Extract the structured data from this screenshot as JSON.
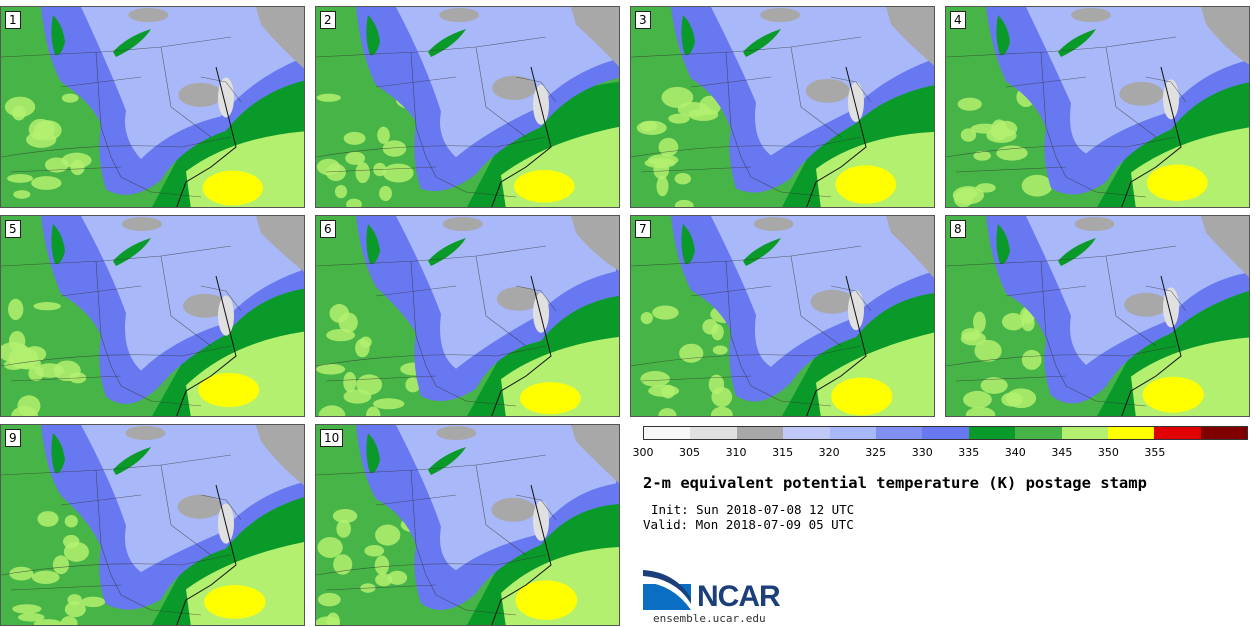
{
  "figure": {
    "title": "2-m equivalent potential temperature (K) postage stamp",
    "init": "Init: Sun 2018-07-08 12 UTC",
    "valid": "Valid: Mon 2018-07-09 05 UTC",
    "logo_text": "NCAR",
    "url": "ensemble.ucar.edu"
  },
  "members": [
    "1",
    "2",
    "3",
    "4",
    "5",
    "6",
    "7",
    "8",
    "9",
    "10"
  ],
  "colorbar": {
    "ticks": [
      "300",
      "305",
      "310",
      "315",
      "320",
      "325",
      "330",
      "335",
      "340",
      "345",
      "350",
      "355"
    ],
    "colors": [
      "#f7f7f7",
      "#e0e0e0",
      "#a8a8a8",
      "#c0c8f8",
      "#a8b8f8",
      "#8090f0",
      "#6878f0",
      "#0a9a2a",
      "#46b446",
      "#b4f070",
      "#ffff00",
      "#e00000",
      "#800000"
    ]
  },
  "map_colors": {
    "green_dark": "#0a9a2a",
    "green": "#46b446",
    "green_light": "#b4f070",
    "yellow": "#ffff00",
    "blue": "#6878f0",
    "blue_light": "#a8b8f8",
    "gray": "#a8a8a8",
    "gray_light": "#e0e0e0"
  }
}
